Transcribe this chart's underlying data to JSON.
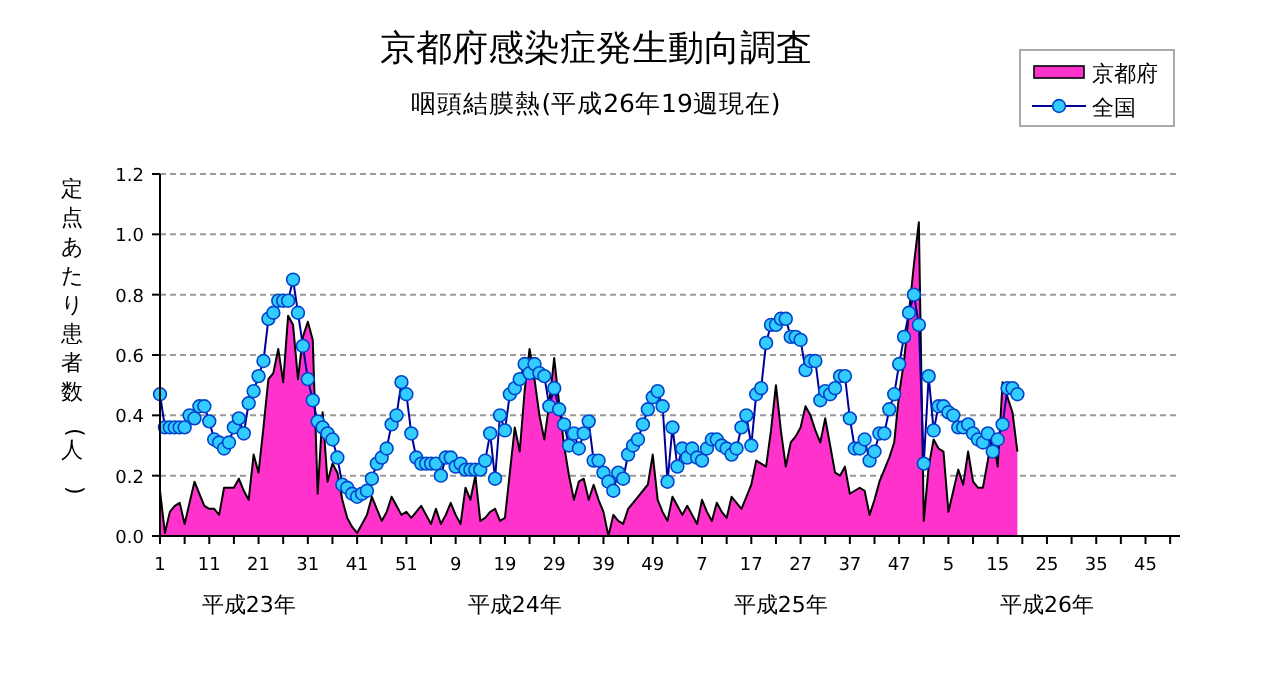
{
  "chart_data": {
    "type": "area",
    "title": "京都府感染症発生動向調査",
    "subtitle": "咽頭結膜熱(平成26年19週現在)",
    "ylabel": "定点あたり患者数(人)",
    "categories": [
      "1",
      null,
      null,
      null,
      null,
      null,
      null,
      null,
      null,
      null,
      "11",
      null,
      null,
      null,
      null,
      null,
      null,
      null,
      null,
      null,
      "21",
      null,
      null,
      null,
      null,
      null,
      null,
      null,
      null,
      null,
      "31",
      null,
      null,
      null,
      null,
      null,
      null,
      null,
      null,
      null,
      "41",
      null,
      null,
      null,
      null,
      null,
      null,
      null,
      null,
      null,
      "51",
      null,
      null,
      null,
      null,
      null,
      null,
      null,
      null,
      null,
      "9",
      null,
      null,
      null,
      null,
      null,
      null,
      null,
      null,
      null,
      "19",
      null,
      null,
      null,
      null,
      null,
      null,
      null,
      null,
      null,
      "29",
      null,
      null,
      null,
      null,
      null,
      null,
      null,
      null,
      null,
      "39",
      null,
      null,
      null,
      null,
      null,
      null,
      null,
      null,
      null,
      "49",
      null,
      null,
      null,
      null,
      null,
      null,
      null,
      null,
      null,
      "7",
      null,
      null,
      null,
      null,
      null,
      null,
      null,
      null,
      null,
      "17",
      null,
      null,
      null,
      null,
      null,
      null,
      null,
      null,
      null,
      "27",
      null,
      null,
      null,
      null,
      null,
      null,
      null,
      null,
      null,
      "37",
      null,
      null,
      null,
      null,
      null,
      null,
      null,
      null,
      null,
      "47",
      null,
      null,
      null,
      null,
      null,
      null,
      null,
      null,
      null,
      "5",
      null,
      null,
      null,
      null,
      null,
      null,
      null,
      null,
      null,
      "15",
      null,
      null,
      null,
      null,
      null,
      null,
      null,
      null,
      null,
      "25",
      null,
      null,
      null,
      null,
      null,
      null,
      null,
      null,
      null,
      "35",
      null,
      null,
      null,
      null,
      null,
      null,
      null,
      null,
      null,
      "45",
      null,
      null,
      null,
      null,
      null,
      null,
      null
    ],
    "ylim": [
      0,
      1.2
    ],
    "yticks": [
      {
        "value": 0,
        "label": "0.0"
      },
      {
        "value": 0.2,
        "label": "0.2"
      },
      {
        "value": 0.4,
        "label": "0.4"
      },
      {
        "value": 0.6,
        "label": "0.6"
      },
      {
        "value": 0.8,
        "label": "0.8"
      },
      {
        "value": 1.0,
        "label": "1.0"
      },
      {
        "value": 1.2,
        "label": "1.2"
      }
    ],
    "grid": "y",
    "legend": "top right",
    "annotations": [
      "平成23年",
      "平成24年",
      "平成25年",
      "平成26年"
    ],
    "series": [
      {
        "name": "京都府",
        "color": "#ff33cc",
        "values": [
          0.15,
          0.01,
          0.08,
          0.1,
          0.11,
          0.04,
          0.11,
          0.18,
          0.14,
          0.1,
          0.09,
          0.09,
          0.07,
          0.16,
          0.16,
          0.16,
          0.19,
          0.15,
          0.12,
          0.27,
          0.21,
          0.36,
          0.52,
          0.54,
          0.62,
          0.51,
          0.73,
          0.7,
          0.52,
          0.66,
          0.71,
          0.65,
          0.14,
          0.41,
          0.18,
          0.24,
          0.21,
          0.12,
          0.06,
          0.03,
          0.01,
          0.04,
          0.07,
          0.13,
          0.09,
          0.05,
          0.08,
          0.13,
          0.1,
          0.07,
          0.08,
          0.06,
          0.08,
          0.1,
          0.07,
          0.04,
          0.09,
          0.04,
          0.07,
          0.11,
          0.07,
          0.04,
          0.16,
          0.12,
          0.2,
          0.05,
          0.06,
          0.08,
          0.09,
          0.05,
          0.06,
          0.21,
          0.36,
          0.28,
          0.48,
          0.62,
          0.52,
          0.4,
          0.32,
          0.44,
          0.59,
          0.44,
          0.3,
          0.2,
          0.12,
          0.18,
          0.19,
          0.12,
          0.17,
          0.12,
          0.08,
          0,
          0.07,
          0.05,
          0.04,
          0.09,
          0.11,
          0.13,
          0.15,
          0.17,
          0.27,
          0.12,
          0.08,
          0.05,
          0.13,
          0.1,
          0.07,
          0.1,
          0.07,
          0.04,
          0.12,
          0.08,
          0.05,
          0.11,
          0.08,
          0.06,
          0.13,
          0.11,
          0.09,
          0.13,
          0.17,
          0.25,
          0.24,
          0.23,
          0.35,
          0.5,
          0.35,
          0.23,
          0.31,
          0.33,
          0.36,
          0.43,
          0.4,
          0.35,
          0.31,
          0.39,
          0.3,
          0.21,
          0.2,
          0.23,
          0.14,
          0.15,
          0.16,
          0.15,
          0.07,
          0.12,
          0.18,
          0.22,
          0.26,
          0.31,
          0.47,
          0.58,
          0.74,
          0.9,
          1.04,
          0.05,
          0.23,
          0.32,
          0.29,
          0.28,
          0.08,
          0.15,
          0.22,
          0.17,
          0.28,
          0.18,
          0.16,
          0.16,
          0.25,
          0.34,
          0.23,
          0.51,
          0.46,
          0.41,
          0.28,
          null,
          null,
          null,
          null,
          null,
          null,
          null,
          null,
          null,
          null,
          null,
          null,
          null,
          null,
          null,
          null,
          null,
          null,
          null,
          null,
          null,
          null,
          null,
          null,
          null,
          null,
          null,
          null,
          null,
          null,
          null,
          null,
          null
        ]
      },
      {
        "name": "全国",
        "type": "line",
        "color": "#33ccff",
        "marker": "circle",
        "values": [
          0.47,
          0.36,
          0.36,
          0.36,
          0.36,
          0.36,
          0.4,
          0.39,
          0.43,
          0.43,
          0.38,
          0.32,
          0.31,
          0.29,
          0.31,
          0.36,
          0.39,
          0.34,
          0.44,
          0.48,
          0.53,
          0.58,
          0.72,
          0.74,
          0.78,
          0.78,
          0.78,
          0.85,
          0.74,
          0.63,
          0.52,
          0.45,
          0.38,
          0.36,
          0.34,
          0.32,
          0.26,
          0.17,
          0.16,
          0.14,
          0.13,
          0.14,
          0.15,
          0.19,
          0.24,
          0.26,
          0.29,
          0.37,
          0.4,
          0.51,
          0.47,
          0.34,
          0.26,
          0.24,
          0.24,
          0.24,
          0.24,
          0.2,
          0.26,
          0.26,
          0.23,
          0.24,
          0.22,
          0.22,
          0.22,
          0.22,
          0.25,
          0.34,
          0.19,
          0.4,
          0.35,
          0.47,
          0.49,
          0.52,
          0.57,
          0.54,
          0.57,
          0.54,
          0.53,
          0.43,
          0.49,
          0.42,
          0.37,
          0.3,
          0.34,
          0.29,
          0.34,
          0.38,
          0.25,
          0.25,
          0.21,
          0.18,
          0.15,
          0.21,
          0.19,
          0.27,
          0.3,
          0.32,
          0.37,
          0.42,
          0.46,
          0.48,
          0.43,
          0.18,
          0.36,
          0.23,
          0.29,
          0.26,
          0.29,
          0.26,
          0.25,
          0.29,
          0.32,
          0.32,
          0.3,
          0.29,
          0.27,
          0.29,
          0.36,
          0.4,
          0.3,
          0.47,
          0.49,
          0.64,
          0.7,
          0.7,
          0.72,
          0.72,
          0.66,
          0.66,
          0.65,
          0.55,
          0.58,
          0.58,
          0.45,
          0.48,
          0.47,
          0.49,
          0.53,
          0.53,
          0.39,
          0.29,
          0.29,
          0.32,
          0.25,
          0.28,
          0.34,
          0.34,
          0.42,
          0.47,
          0.57,
          0.66,
          0.74,
          0.8,
          0.7,
          0.24,
          0.53,
          0.35,
          0.43,
          0.43,
          0.41,
          0.4,
          0.36,
          0.36,
          0.37,
          0.34,
          0.32,
          0.31,
          0.34,
          0.28,
          0.32,
          0.37,
          0.49,
          0.49,
          0.47,
          null,
          null,
          null,
          null,
          null,
          null,
          null,
          null,
          null,
          null,
          null,
          null,
          null,
          null,
          null,
          null,
          null,
          null,
          null,
          null,
          null,
          null,
          null,
          null,
          null,
          null,
          null,
          null,
          null,
          null,
          null,
          null,
          null
        ]
      }
    ]
  }
}
